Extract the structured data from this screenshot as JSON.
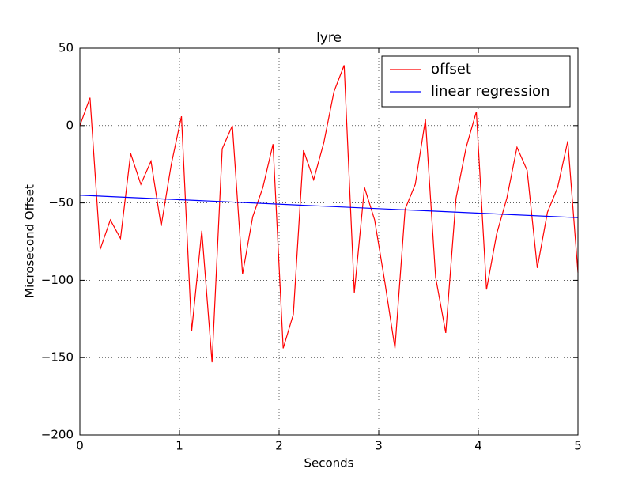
{
  "chart_data": {
    "type": "line",
    "title": "lyre",
    "x_label": "Seconds",
    "y_label": "Microsecond Offset",
    "series": [
      {
        "name": "offset",
        "color": "#ff0000",
        "x": [
          0,
          0.102,
          0.204,
          0.306,
          0.408,
          0.51,
          0.612,
          0.714,
          0.816,
          0.918,
          1.02,
          1.122,
          1.224,
          1.327,
          1.429,
          1.531,
          1.633,
          1.735,
          1.837,
          1.939,
          2.041,
          2.143,
          2.245,
          2.347,
          2.449,
          2.551,
          2.653,
          2.755,
          2.857,
          2.959,
          3.061,
          3.163,
          3.265,
          3.367,
          3.469,
          3.571,
          3.673,
          3.776,
          3.878,
          3.98,
          4.082,
          4.184,
          4.286,
          4.388,
          4.49,
          4.592,
          4.694,
          4.796,
          4.898,
          5
        ],
        "values": [
          0,
          18,
          -80,
          -61,
          -73,
          -18,
          -38,
          -23,
          -65,
          -25,
          6,
          -133,
          -68,
          -153,
          -15,
          0,
          -96,
          -59,
          -40,
          -12,
          -144,
          -122,
          -16,
          -35,
          -11,
          22,
          39,
          -108,
          -40,
          -61,
          -101,
          -144,
          -54,
          -38,
          4,
          -98,
          -134,
          -47,
          -14,
          9,
          -106,
          -70,
          -47,
          -14,
          -29,
          -92,
          -56,
          -40,
          -10,
          -95
        ]
      },
      {
        "name": "linear regression",
        "color": "#0000ff",
        "x": [
          0,
          5
        ],
        "values": [
          -45,
          -59.5
        ]
      }
    ],
    "xlim": [
      0,
      5
    ],
    "xticks": [
      0,
      1,
      2,
      3,
      4,
      5
    ],
    "ylim": [
      -200,
      50
    ],
    "yticks": [
      {
        "value": -200,
        "label": "−200"
      },
      {
        "value": -150,
        "label": "−150"
      },
      {
        "value": -100,
        "label": "−100"
      },
      {
        "value": -50,
        "label": "−50"
      },
      0,
      50
    ],
    "grid": true,
    "legend": "upper right"
  }
}
